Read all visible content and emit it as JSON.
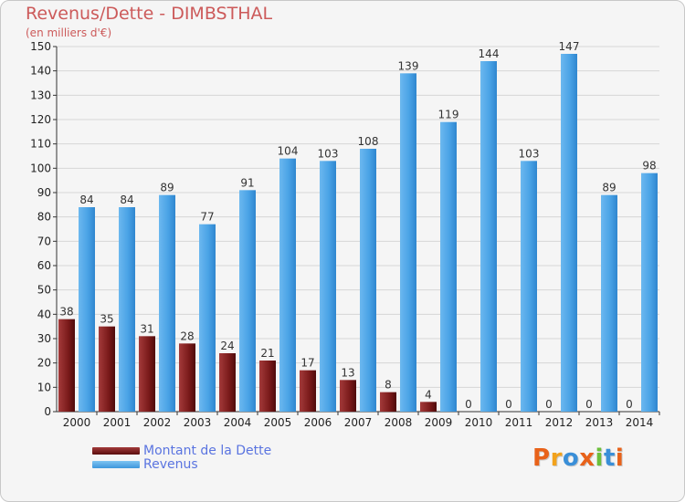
{
  "header": {
    "title": "Revenus/Dette - DIMBSTHAL",
    "subtitle": "(en milliers d'€)"
  },
  "legend": {
    "items": [
      "Montant de la Dette",
      "Revenus"
    ]
  },
  "logo": {
    "text": "Proxiti",
    "colors": [
      "#e8621a",
      "#f2a21c",
      "#3a8fd8",
      "#e8621a",
      "#6cbf3a",
      "#3a8fd8",
      "#e8621a"
    ]
  },
  "colors": {
    "dette": "#7a1a1a",
    "revenus": "#4aa3e6",
    "grid": "#d6d6d6",
    "axis": "#333333"
  },
  "chart_data": {
    "type": "bar",
    "title": "Revenus/Dette - DIMBSTHAL",
    "subtitle": "(en milliers d'€)",
    "categories": [
      "2000",
      "2001",
      "2002",
      "2003",
      "2004",
      "2005",
      "2006",
      "2007",
      "2008",
      "2009",
      "2010",
      "2011",
      "2012",
      "2013",
      "2014"
    ],
    "series": [
      {
        "name": "Montant de la Dette",
        "values": [
          38,
          35,
          31,
          28,
          24,
          21,
          17,
          13,
          8,
          4,
          0,
          0,
          0,
          0,
          0
        ]
      },
      {
        "name": "Revenus",
        "values": [
          84,
          84,
          89,
          77,
          91,
          104,
          103,
          108,
          139,
          119,
          144,
          103,
          147,
          89,
          98
        ]
      }
    ],
    "ylim": [
      0,
      150
    ],
    "ytick_step": 10,
    "grid": true,
    "legend_position": "bottom-left"
  }
}
